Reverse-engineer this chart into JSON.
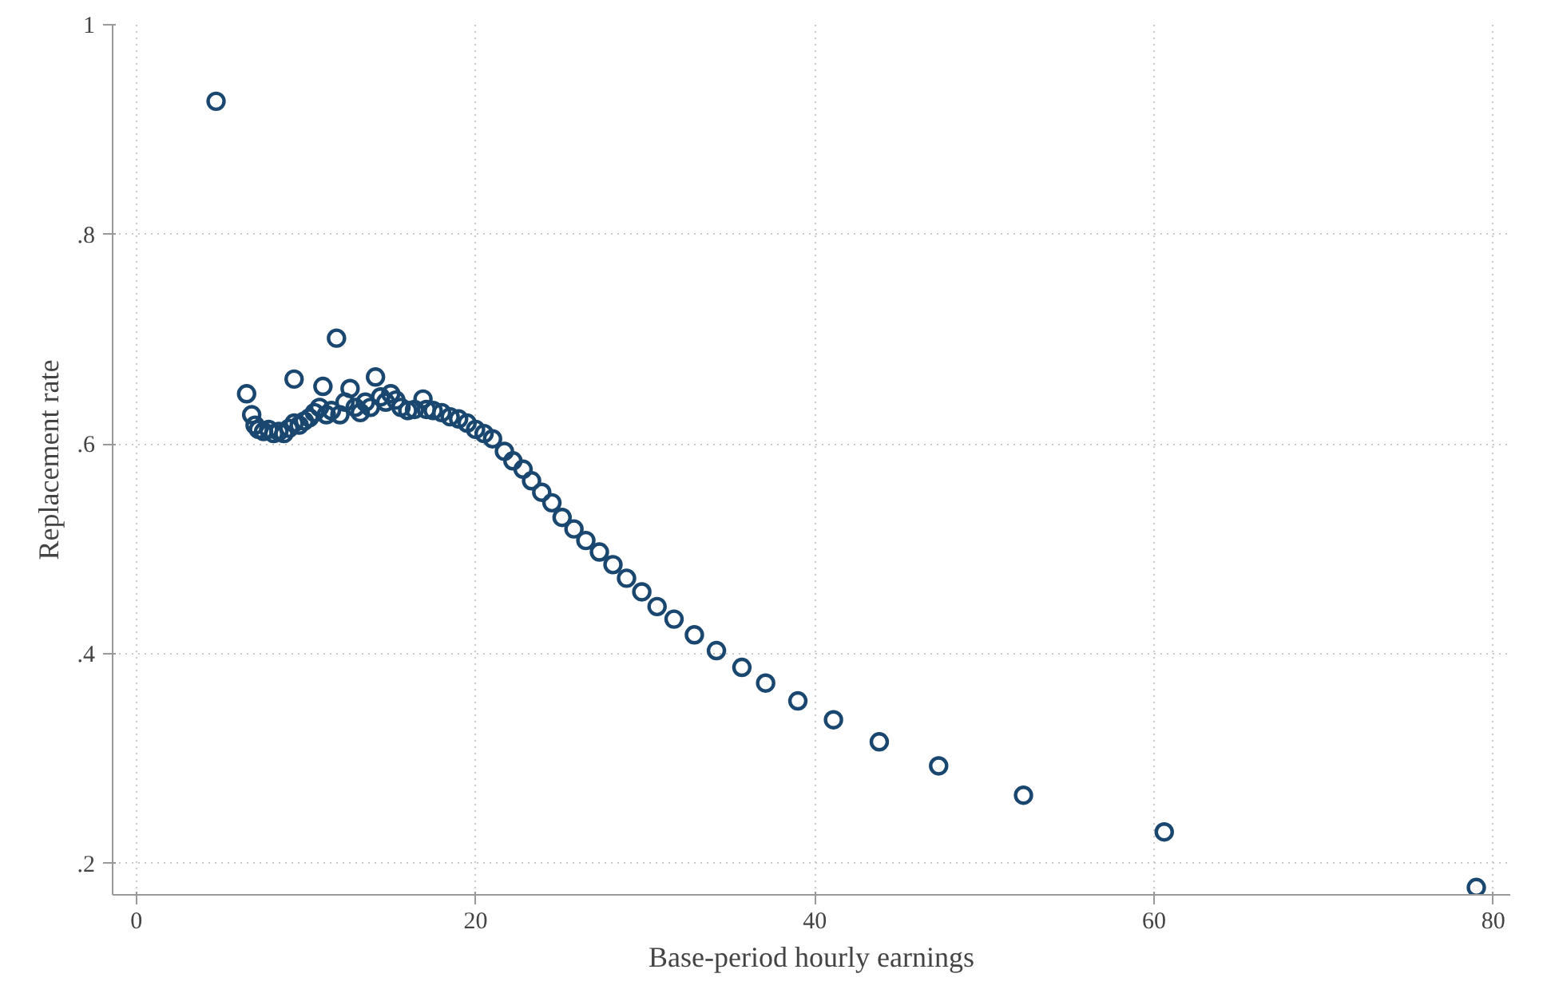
{
  "chart_data": {
    "type": "scatter",
    "xlabel": "Base-period hourly earnings",
    "ylabel": "Replacement rate",
    "xlim": [
      -1.4,
      81
    ],
    "ylim": [
      0.17,
      1.0
    ],
    "xticks": [
      0,
      20,
      40,
      60,
      80
    ],
    "yticks": [
      {
        "value": 0.2,
        "label": ".2"
      },
      {
        "value": 0.4,
        "label": ".4"
      },
      {
        "value": 0.6,
        "label": ".6"
      },
      {
        "value": 0.8,
        "label": ".8"
      },
      1
    ],
    "grid": true,
    "marker": "circle",
    "series": [
      {
        "color": "#1a476f",
        "x": [
          4.7,
          6.5,
          6.8,
          7.0,
          7.2,
          7.5,
          7.8,
          8.1,
          8.4,
          8.7,
          9.0,
          9.3,
          9.3,
          9.6,
          9.9,
          10.2,
          10.5,
          10.8,
          11.0,
          11.2,
          11.5,
          11.8,
          12.0,
          12.3,
          12.6,
          12.9,
          13.2,
          13.5,
          13.8,
          14.1,
          14.4,
          14.7,
          15.0,
          15.3,
          15.6,
          16.0,
          16.4,
          16.9,
          17.1,
          17.5,
          18.0,
          18.5,
          19.0,
          19.5,
          20.0,
          20.5,
          21.0,
          21.7,
          22.2,
          22.8,
          23.3,
          23.9,
          24.5,
          25.1,
          25.8,
          26.5,
          27.3,
          28.1,
          28.9,
          29.8,
          30.7,
          31.7,
          32.9,
          34.2,
          35.7,
          37.1,
          39.0,
          41.1,
          43.8,
          47.3,
          52.3,
          60.6,
          79.0
        ],
        "values": [
          0.927,
          0.648,
          0.628,
          0.618,
          0.614,
          0.612,
          0.614,
          0.61,
          0.612,
          0.61,
          0.615,
          0.662,
          0.62,
          0.618,
          0.622,
          0.625,
          0.63,
          0.635,
          0.655,
          0.628,
          0.632,
          0.701,
          0.628,
          0.64,
          0.653,
          0.635,
          0.63,
          0.64,
          0.635,
          0.664,
          0.645,
          0.64,
          0.648,
          0.642,
          0.635,
          0.632,
          0.633,
          0.643,
          0.633,
          0.632,
          0.63,
          0.626,
          0.624,
          0.62,
          0.614,
          0.61,
          0.605,
          0.593,
          0.584,
          0.576,
          0.565,
          0.554,
          0.544,
          0.53,
          0.519,
          0.508,
          0.497,
          0.485,
          0.472,
          0.459,
          0.445,
          0.433,
          0.418,
          0.403,
          0.387,
          0.372,
          0.355,
          0.337,
          0.316,
          0.293,
          0.265,
          0.23,
          0.177
        ]
      }
    ]
  }
}
